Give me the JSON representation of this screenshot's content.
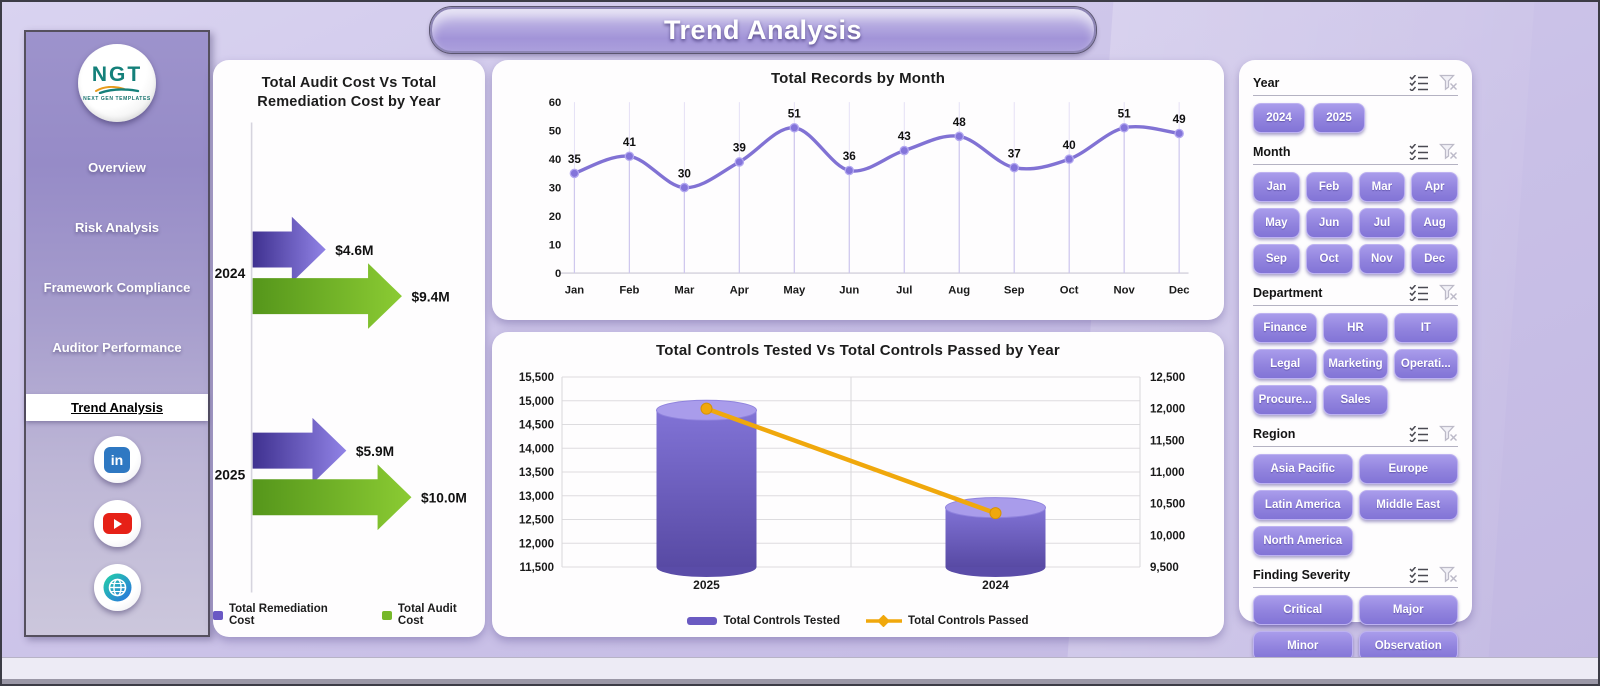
{
  "title": "Trend Analysis",
  "sidebar": {
    "logo_text": "NGT",
    "logo_subtext": "NEXT GEN TEMPLATES",
    "items": [
      {
        "label": "Overview",
        "active": false
      },
      {
        "label": "Risk Analysis",
        "active": false
      },
      {
        "label": "Framework Compliance",
        "active": false
      },
      {
        "label": "Auditor Performance",
        "active": false
      },
      {
        "label": "Trend Analysis",
        "active": true
      }
    ],
    "social_icons": [
      "linkedin-icon",
      "youtube-icon",
      "globe-icon"
    ]
  },
  "filters": {
    "header_icons": [
      "multi-select-icon",
      "clear-filter-icon"
    ],
    "sections": [
      {
        "label": "Year",
        "layout": "row",
        "buttons": [
          "2024",
          "2025"
        ]
      },
      {
        "label": "Month",
        "layout": "c4",
        "buttons": [
          "Jan",
          "Feb",
          "Mar",
          "Apr",
          "May",
          "Jun",
          "Jul",
          "Aug",
          "Sep",
          "Oct",
          "Nov",
          "Dec"
        ]
      },
      {
        "label": "Department",
        "layout": "c3",
        "buttons": [
          "Finance",
          "HR",
          "IT",
          "Legal",
          "Marketing",
          "Operati...",
          "Procure...",
          "Sales"
        ]
      },
      {
        "label": "Region",
        "layout": "c2",
        "buttons": [
          "Asia Pacific",
          "Europe",
          "Latin America",
          "Middle East",
          "North America"
        ]
      },
      {
        "label": "Finding Severity",
        "layout": "c2",
        "buttons": [
          "Critical",
          "Major",
          "Minor",
          "Observation"
        ]
      }
    ]
  },
  "chart_data": [
    {
      "type": "bar",
      "orientation": "horizontal-arrows",
      "title": "Total Audit Cost Vs Total Remediation Cost by Year",
      "categories": [
        "2024",
        "2025"
      ],
      "series": [
        {
          "name": "Total Remediation Cost",
          "color": "#6a58c4",
          "values": [
            4.6,
            5.9
          ],
          "labels": [
            "$4.6M",
            "$5.9M"
          ]
        },
        {
          "name": "Total Audit Cost",
          "color": "#76b82a",
          "values": [
            9.4,
            10.0
          ],
          "labels": [
            "$9.4M",
            "$10.0M"
          ]
        }
      ],
      "unit": "$M",
      "legend_position": "bottom"
    },
    {
      "type": "line",
      "title": "Total Records by Month",
      "categories": [
        "Jan",
        "Feb",
        "Mar",
        "Apr",
        "May",
        "Jun",
        "Jul",
        "Aug",
        "Sep",
        "Oct",
        "Nov",
        "Dec"
      ],
      "values": [
        35,
        41,
        30,
        39,
        51,
        36,
        43,
        48,
        37,
        40,
        51,
        49
      ],
      "ylim": [
        0,
        60
      ],
      "ytick_step": 10,
      "line_color": "#7a6ad2",
      "grid": "vertical"
    },
    {
      "type": "combo",
      "title": "Total Controls Tested Vs Total Controls Passed by Year",
      "categories": [
        "2025",
        "2024"
      ],
      "series": [
        {
          "name": "Total Controls Tested",
          "chart": "cylinder-column",
          "axis": "left",
          "color": "#6a5ac2",
          "values": [
            14800,
            12750
          ]
        },
        {
          "name": "Total Controls Passed",
          "chart": "line",
          "axis": "right",
          "color": "#f0a80c",
          "values": [
            12000,
            10350
          ]
        }
      ],
      "left_axis": {
        "min": 11500,
        "max": 15500,
        "step": 500
      },
      "right_axis": {
        "min": 9500,
        "max": 12500,
        "step": 500
      },
      "legend_position": "bottom"
    }
  ]
}
